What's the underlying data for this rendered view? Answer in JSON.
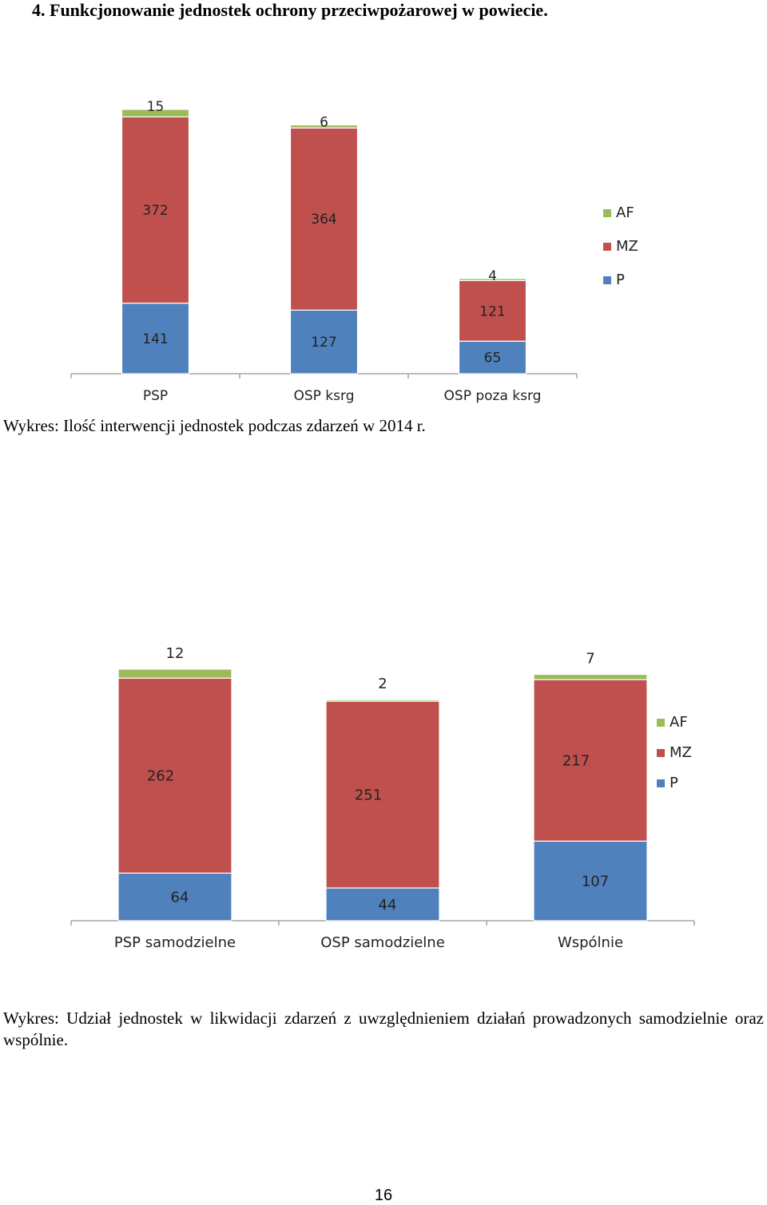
{
  "page": {
    "heading": "4.  Funkcjonowanie jednostek ochrony przeciwpożarowej w powiecie.",
    "page_number": "16"
  },
  "captions": {
    "chart1": "Wykres: Ilość interwencji jednostek podczas zdarzeń w 2014 r.",
    "chart2": "Wykres: Udział jednostek w likwidacji zdarzeń z uwzględnieniem działań prowadzonych samodzielnie oraz wspólnie."
  },
  "colors": {
    "P": "#4f81bd",
    "MZ": "#c0504d",
    "AF": "#9bbb59",
    "axis": "#a6a6a6"
  },
  "chart_data": [
    {
      "type": "bar",
      "stacked": true,
      "categories": [
        "PSP",
        "OSP ksrg",
        "OSP poza ksrg"
      ],
      "series": [
        {
          "name": "P",
          "values": [
            141,
            127,
            65
          ]
        },
        {
          "name": "MZ",
          "values": [
            372,
            364,
            121
          ]
        },
        {
          "name": "AF",
          "values": [
            15,
            6,
            4
          ]
        }
      ],
      "legend": [
        "AF",
        "MZ",
        "P"
      ],
      "legend_position": "right",
      "grid": false,
      "data_labels": true,
      "ylim": [
        0,
        528
      ],
      "title": "",
      "xlabel": "",
      "ylabel": ""
    },
    {
      "type": "bar",
      "stacked": true,
      "categories": [
        "PSP samodzielne",
        "OSP samodzielne",
        "Wspólnie"
      ],
      "series": [
        {
          "name": "P",
          "values": [
            64,
            44,
            107
          ]
        },
        {
          "name": "MZ",
          "values": [
            262,
            251,
            217
          ]
        },
        {
          "name": "AF",
          "values": [
            12,
            2,
            7
          ]
        }
      ],
      "legend": [
        "AF",
        "MZ",
        "P"
      ],
      "legend_position": "right",
      "grid": false,
      "data_labels": true,
      "ylim": [
        0,
        338
      ],
      "title": "",
      "xlabel": "",
      "ylabel": ""
    }
  ]
}
